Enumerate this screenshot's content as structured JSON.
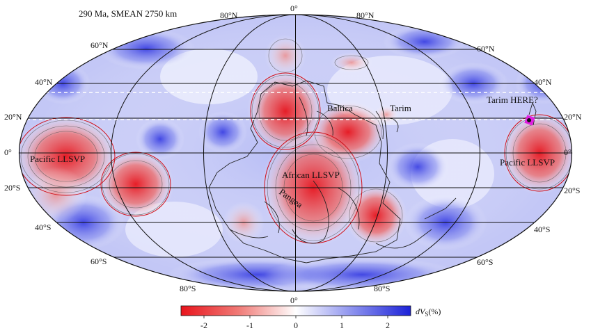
{
  "map": {
    "title": "290 Ma, SMEAN 2750 km",
    "projection": "Mollweide (global)",
    "field": "shear-wave velocity anomaly, colored red (slow) to blue (fast)",
    "graticule": {
      "parallels": [
        "80°N",
        "60°N",
        "40°N",
        "20°N",
        "0°",
        "20°S",
        "40°S",
        "60°S",
        "80°S"
      ],
      "central_meridian_top": "0°",
      "central_meridian_bottom": "0°"
    },
    "lat_labels": {
      "left": [
        "60°N",
        "40°N",
        "20°N",
        "0°",
        "20°S",
        "40°S",
        "60°S"
      ],
      "right": [
        "60°N",
        "40°N",
        "20°N",
        "0°",
        "20°S",
        "40°S",
        "60°S"
      ],
      "top": [
        "80°N",
        "0°",
        "80°N"
      ],
      "bottom": [
        "80°S",
        "0°",
        "80°S"
      ]
    },
    "annotations": {
      "pacific_llsvp_left": "Pacific LLSVP",
      "pacific_llsvp_right": "Pacific LLSVP",
      "african_llsvp": "African LLSVP",
      "pangea": "Pangea",
      "baltica": "Baltica",
      "tarim": "Tarim",
      "tarim_here": "Tarim HERE?"
    },
    "dashed_lines": "two dashed white parallels near 20°N and 35°N",
    "colors": {
      "slow": "#e8141c",
      "neutral": "#ffffff",
      "fast": "#1c22d8",
      "continent_outline": "#222222",
      "marker": "#e020e0"
    }
  },
  "colorbar": {
    "ticks": [
      "-2",
      "-1",
      "0",
      "1",
      "2"
    ],
    "label_main": "dV",
    "label_sub": "S",
    "label_unit": "(%)",
    "min": -2.5,
    "max": 2.5
  }
}
